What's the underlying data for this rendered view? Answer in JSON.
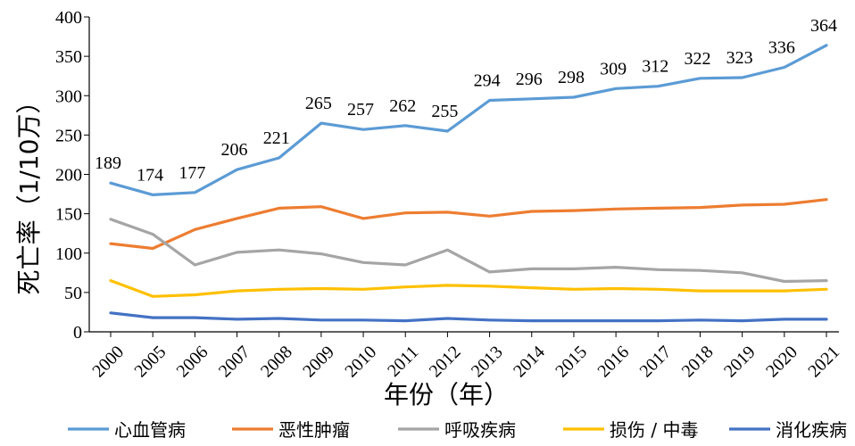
{
  "chart_data": {
    "type": "line",
    "title": "",
    "xlabel": "年份（年）",
    "ylabel": "死亡率（1/10万）",
    "ylim": [
      0,
      400
    ],
    "yticks": [
      0,
      50,
      100,
      150,
      200,
      250,
      300,
      350,
      400
    ],
    "categories": [
      "2000",
      "2005",
      "2006",
      "2007",
      "2008",
      "2009",
      "2010",
      "2011",
      "2012",
      "2013",
      "2014",
      "2015",
      "2016",
      "2017",
      "2018",
      "2019",
      "2020",
      "2021"
    ],
    "grid": false,
    "legend": "bottom",
    "series": [
      {
        "name": "心血管病",
        "color": "#5B9BD5",
        "labeled": true,
        "values": [
          189,
          174,
          177,
          206,
          221,
          265,
          257,
          262,
          255,
          294,
          296,
          298,
          309,
          312,
          322,
          323,
          336,
          364
        ]
      },
      {
        "name": "恶性肿瘤",
        "color": "#ED7D31",
        "labeled": false,
        "values": [
          112,
          106,
          130,
          144,
          157,
          159,
          144,
          151,
          152,
          147,
          153,
          154,
          156,
          157,
          158,
          161,
          162,
          168
        ]
      },
      {
        "name": "呼吸疾病",
        "color": "#A5A5A5",
        "labeled": false,
        "values": [
          143,
          124,
          85,
          101,
          104,
          99,
          88,
          85,
          104,
          76,
          80,
          80,
          82,
          79,
          78,
          75,
          64,
          65
        ]
      },
      {
        "name": "损伤 / 中毒",
        "color": "#FFC000",
        "labeled": false,
        "values": [
          65,
          45,
          47,
          52,
          54,
          55,
          54,
          57,
          59,
          58,
          56,
          54,
          55,
          54,
          52,
          52,
          52,
          54
        ]
      },
      {
        "name": "消化疾病",
        "color": "#4472C4",
        "labeled": false,
        "values": [
          24,
          18,
          18,
          16,
          17,
          15,
          15,
          14,
          17,
          15,
          14,
          14,
          14,
          14,
          15,
          14,
          16,
          16
        ]
      }
    ]
  }
}
